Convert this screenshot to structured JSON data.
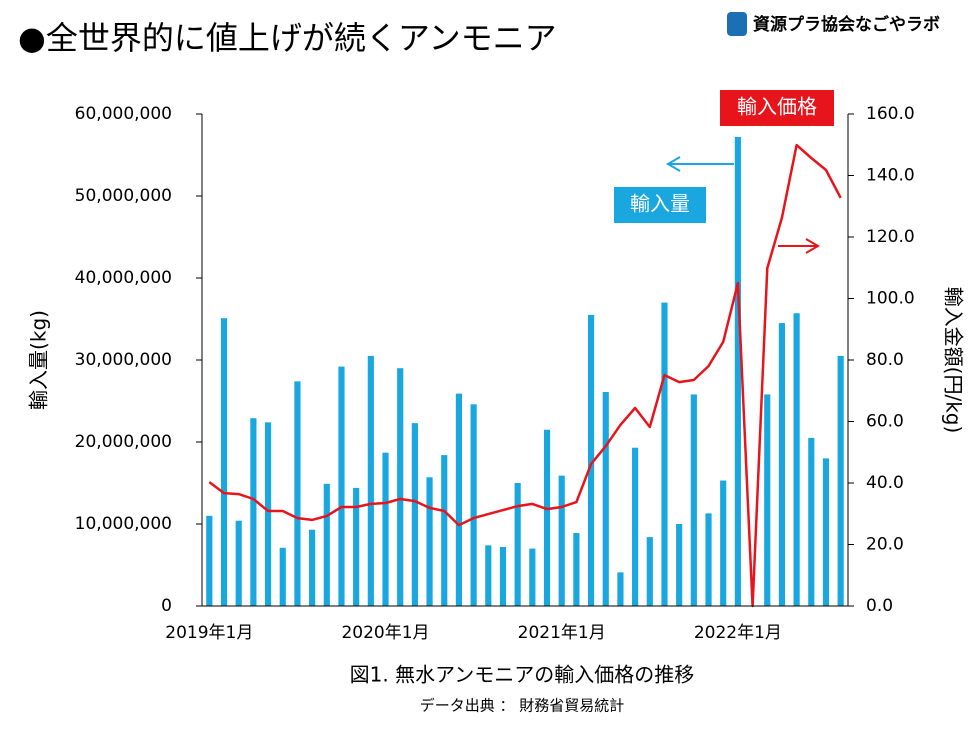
{
  "chart_data": {
    "type": "bar_line",
    "title": "●全世界的に値上げが続くアンモニア",
    "logo": "資源プラ協会なごやラボ",
    "caption": "図1. 無水アンモニアの輸入価格の推移",
    "source": "データ出典 ： 財務省貿易統計",
    "y_label": "輸入量(kg)",
    "y2_label": "輸入金額(円/kg)",
    "annotations": [
      "輸入価格",
      "輸入量"
    ],
    "categories": [
      "2019年1月",
      null,
      null,
      null,
      null,
      null,
      null,
      null,
      null,
      null,
      null,
      null,
      "2020年1月",
      null,
      null,
      null,
      null,
      null,
      null,
      null,
      null,
      null,
      null,
      null,
      "2021年1月",
      null,
      null,
      null,
      null,
      null,
      null,
      null,
      null,
      null,
      null,
      null,
      "2022年1月",
      null,
      null,
      null,
      null,
      null,
      null,
      null
    ],
    "series": [
      {
        "name": "輸入量",
        "color": "#1aa7e0",
        "type": "bar",
        "values": [
          11000000,
          35100000,
          10400000,
          22900000,
          22400000,
          7100000,
          27400000,
          9300000,
          14900000,
          29200000,
          14400000,
          30500000,
          18700000,
          29000000,
          22300000,
          15700000,
          18400000,
          25900000,
          24600000,
          7400000,
          7200000,
          15000000,
          7000000,
          21500000,
          15900000,
          8900000,
          35500000,
          26100000,
          4100000,
          19300000,
          8400000,
          37000000,
          10000000,
          25800000,
          11300000,
          15300000,
          57200000,
          0,
          25800000,
          34500000,
          35700000,
          20500000,
          18000000,
          30500000
        ]
      },
      {
        "name": "輸入価格",
        "color": "#e8141c",
        "type": "line",
        "axis": "y2",
        "values": [
          40.3,
          36.7,
          36.4,
          34.8,
          30.9,
          30.9,
          28.6,
          28.0,
          29.3,
          32.2,
          32.2,
          33.2,
          33.5,
          34.8,
          34.1,
          31.9,
          30.9,
          26.3,
          28.6,
          29.9,
          31.2,
          32.5,
          33.2,
          31.5,
          32.2,
          33.8,
          46.2,
          52.0,
          58.9,
          64.4,
          58.2,
          75.1,
          72.8,
          73.5,
          78.0,
          85.9,
          105.0,
          0,
          109.9,
          126.2,
          149.9,
          145.7,
          141.8,
          132.7
        ]
      }
    ],
    "ylim": [
      0,
      60000000
    ],
    "yticks": [
      0,
      {
        "value": 10000000,
        "label": "10,000,000"
      },
      {
        "value": 20000000,
        "label": "20,000,000"
      },
      {
        "value": 30000000,
        "label": "30,000,000"
      },
      {
        "value": 40000000,
        "label": "40,000,000"
      },
      {
        "value": 50000000,
        "label": "50,000,000"
      },
      {
        "value": 60000000,
        "label": "60,000,000"
      }
    ],
    "y2lim": [
      0,
      160
    ],
    "y2ticks": [
      {
        "value": 0,
        "label": "0.0"
      },
      {
        "value": 20,
        "label": "20.0"
      },
      {
        "value": 40,
        "label": "40.0"
      },
      {
        "value": 60,
        "label": "60.0"
      },
      {
        "value": 80,
        "label": "80.0"
      },
      {
        "value": 100,
        "label": "100.0"
      },
      {
        "value": 120,
        "label": "120.0"
      },
      {
        "value": 140,
        "label": "140.0"
      },
      {
        "value": 160,
        "label": "160.0"
      }
    ]
  }
}
